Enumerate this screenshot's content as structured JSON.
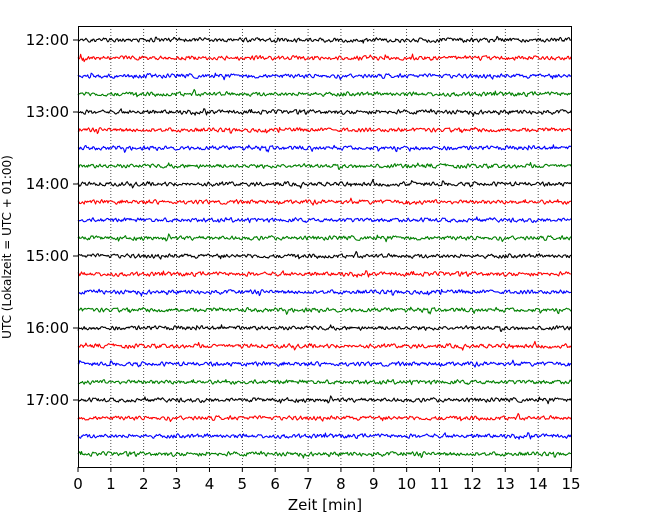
{
  "chart_data": {
    "type": "line",
    "title": "",
    "xlabel": "Zeit  [min]",
    "ylabel": "UTC (Lokalzeit = UTC + 01:00)",
    "xlim": [
      0,
      15
    ],
    "x_ticks": [
      0,
      1,
      2,
      3,
      4,
      5,
      6,
      7,
      8,
      9,
      10,
      11,
      12,
      13,
      14,
      15
    ],
    "x_tick_labels": [
      "0",
      "1",
      "2",
      "3",
      "4",
      "5",
      "6",
      "7",
      "8",
      "9",
      "10",
      "11",
      "12",
      "13",
      "14",
      "15"
    ],
    "y_tick_labels": [
      "12:00",
      "13:00",
      "14:00",
      "15:00",
      "16:00",
      "17:00"
    ],
    "vertical_grid": "dotted",
    "trace_colors": [
      "#000000",
      "#ff0000",
      "#0000ff",
      "#008000"
    ],
    "traces": [
      {
        "start": "12:00",
        "color": "#000000"
      },
      {
        "start": "12:15",
        "color": "#ff0000"
      },
      {
        "start": "12:30",
        "color": "#0000ff"
      },
      {
        "start": "12:45",
        "color": "#008000"
      },
      {
        "start": "13:00",
        "color": "#000000"
      },
      {
        "start": "13:15",
        "color": "#ff0000"
      },
      {
        "start": "13:30",
        "color": "#0000ff"
      },
      {
        "start": "13:45",
        "color": "#008000"
      },
      {
        "start": "14:00",
        "color": "#000000"
      },
      {
        "start": "14:15",
        "color": "#ff0000"
      },
      {
        "start": "14:30",
        "color": "#0000ff"
      },
      {
        "start": "14:45",
        "color": "#008000"
      },
      {
        "start": "15:00",
        "color": "#000000"
      },
      {
        "start": "15:15",
        "color": "#ff0000"
      },
      {
        "start": "15:30",
        "color": "#0000ff"
      },
      {
        "start": "15:45",
        "color": "#008000"
      },
      {
        "start": "16:00",
        "color": "#000000"
      },
      {
        "start": "16:15",
        "color": "#ff0000"
      },
      {
        "start": "16:30",
        "color": "#0000ff"
      },
      {
        "start": "16:45",
        "color": "#008000"
      },
      {
        "start": "17:00",
        "color": "#000000"
      },
      {
        "start": "17:15",
        "color": "#ff0000"
      },
      {
        "start": "17:30",
        "color": "#0000ff"
      },
      {
        "start": "17:45",
        "color": "#008000"
      }
    ]
  }
}
